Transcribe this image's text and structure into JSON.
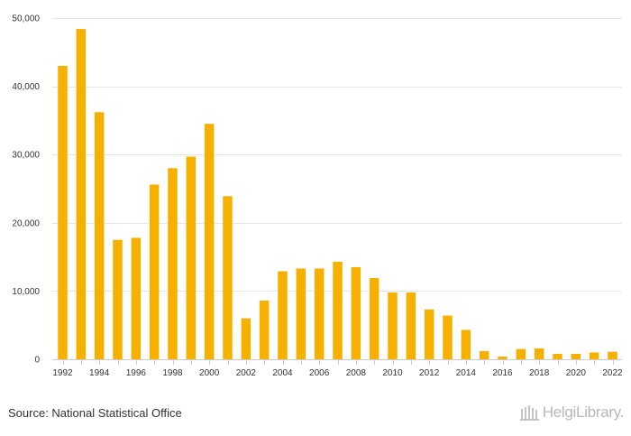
{
  "chart_data": {
    "type": "bar",
    "categories": [
      "1992",
      "1993",
      "1994",
      "1995",
      "1996",
      "1997",
      "1998",
      "1999",
      "2000",
      "2001",
      "2002",
      "2003",
      "2004",
      "2005",
      "2006",
      "2007",
      "2008",
      "2009",
      "2010",
      "2011",
      "2012",
      "2013",
      "2014",
      "2015",
      "2016",
      "2017",
      "2018",
      "2019",
      "2020",
      "2021",
      "2022"
    ],
    "x_tick_labels": [
      "1992",
      "1994",
      "1996",
      "1998",
      "2000",
      "2002",
      "2004",
      "2006",
      "2008",
      "2010",
      "2012",
      "2014",
      "2016",
      "2018",
      "2020",
      "2022"
    ],
    "values": [
      43000,
      48400,
      36200,
      17500,
      17800,
      25600,
      28000,
      29700,
      34500,
      23900,
      6000,
      8600,
      12900,
      13300,
      13300,
      14300,
      13500,
      11900,
      9800,
      9800,
      7300,
      6400,
      4300,
      1200,
      400,
      1500,
      1600,
      800,
      800,
      1000,
      1100
    ],
    "ylim": [
      0,
      50000
    ],
    "y_ticks": [
      0,
      10000,
      20000,
      30000,
      40000,
      50000
    ],
    "y_tick_labels": [
      "0",
      "10,000",
      "20,000",
      "30,000",
      "40,000",
      "50,000"
    ],
    "title": "",
    "xlabel": "",
    "ylabel": "",
    "bar_color": "#f5b000",
    "grid": true
  },
  "footer": {
    "source": "Source: National Statistical Office",
    "logo_text": "HelgiLibrary."
  }
}
